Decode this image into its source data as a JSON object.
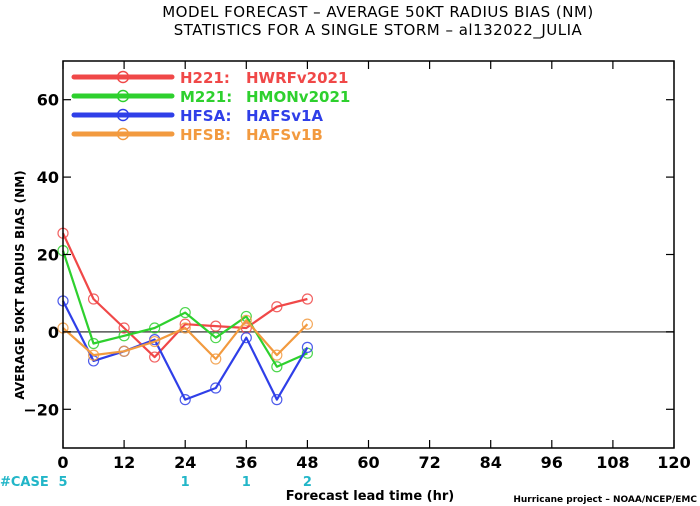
{
  "chart_data": {
    "type": "line",
    "title_line1": "MODEL FORECAST – AVERAGE 50KT RADIUS BIAS (NM)",
    "title_line2": "STATISTICS FOR A SINGLE STORM – al132022_JULIA",
    "ylabel": "AVERAGE 50KT RADIUS BIAS (NM)",
    "xlabel": "Forecast lead time (hr)",
    "credit": "Hurricane project – NOAA/NCEP/EMC",
    "xlim": [
      0,
      120
    ],
    "ylim": [
      -30,
      70
    ],
    "xticks": [
      0,
      12,
      24,
      36,
      48,
      60,
      72,
      84,
      96,
      108,
      120
    ],
    "xtick_labels": [
      "0",
      "12",
      "24",
      "36",
      "48",
      "60",
      "72",
      "84",
      "96",
      "108",
      "120"
    ],
    "yticks": [
      -20,
      0,
      20,
      40,
      60
    ],
    "ytick_labels": [
      "−20",
      "0",
      "20",
      "40",
      "60"
    ],
    "case_label": "#CASE",
    "cases": [
      {
        "x": 0,
        "label": "5"
      },
      {
        "x": 24,
        "label": "1"
      },
      {
        "x": 36,
        "label": "1"
      },
      {
        "x": 48,
        "label": "2"
      }
    ],
    "zero_line": true,
    "series": [
      {
        "code": "H221:",
        "name": "HWRFv2021",
        "color": "#f04848",
        "x": [
          0,
          6,
          12,
          18,
          24,
          30,
          36,
          42,
          48
        ],
        "values": [
          25.5,
          8.5,
          1,
          -6.5,
          2,
          1.5,
          1,
          6.5,
          8.5
        ]
      },
      {
        "code": "M221:",
        "name": "HMONv2021",
        "color": "#2ed02e",
        "x": [
          0,
          6,
          12,
          18,
          24,
          30,
          36,
          42,
          48
        ],
        "values": [
          21,
          -3,
          -1,
          1,
          5,
          -1.5,
          4,
          -9,
          -5.5
        ]
      },
      {
        "code": "HFSA:",
        "name": "HAFSv1A",
        "color": "#2f3fe8",
        "x": [
          0,
          6,
          12,
          18,
          24,
          30,
          36,
          42,
          48
        ],
        "values": [
          8,
          -7.5,
          -5,
          -2,
          -17.5,
          -14.5,
          -1.5,
          -17.5,
          -4
        ]
      },
      {
        "code": "HFSB:",
        "name": "HAFSv1B",
        "color": "#f29a3f",
        "x": [
          0,
          6,
          12,
          18,
          24,
          30,
          36,
          42,
          48
        ],
        "values": [
          1,
          -6,
          -5,
          -2.5,
          1,
          -7,
          3,
          -6,
          2
        ]
      }
    ],
    "grid": false,
    "legend_position": "top-left"
  },
  "colors": {
    "case": "#22b6c8",
    "zero_line": "#555555",
    "axis": "#000000"
  }
}
